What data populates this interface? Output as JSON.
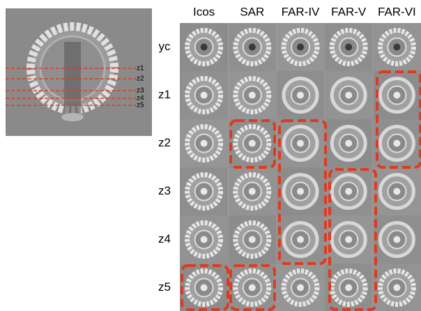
{
  "columns": [
    "Icos",
    "SAR",
    "FAR-IV",
    "FAR-V",
    "FAR-VI"
  ],
  "rows": [
    "yc",
    "z1",
    "z2",
    "z3",
    "z4",
    "z5"
  ],
  "slice_labels": [
    "z1",
    "z2",
    "z3",
    "z4",
    "z5"
  ]
}
